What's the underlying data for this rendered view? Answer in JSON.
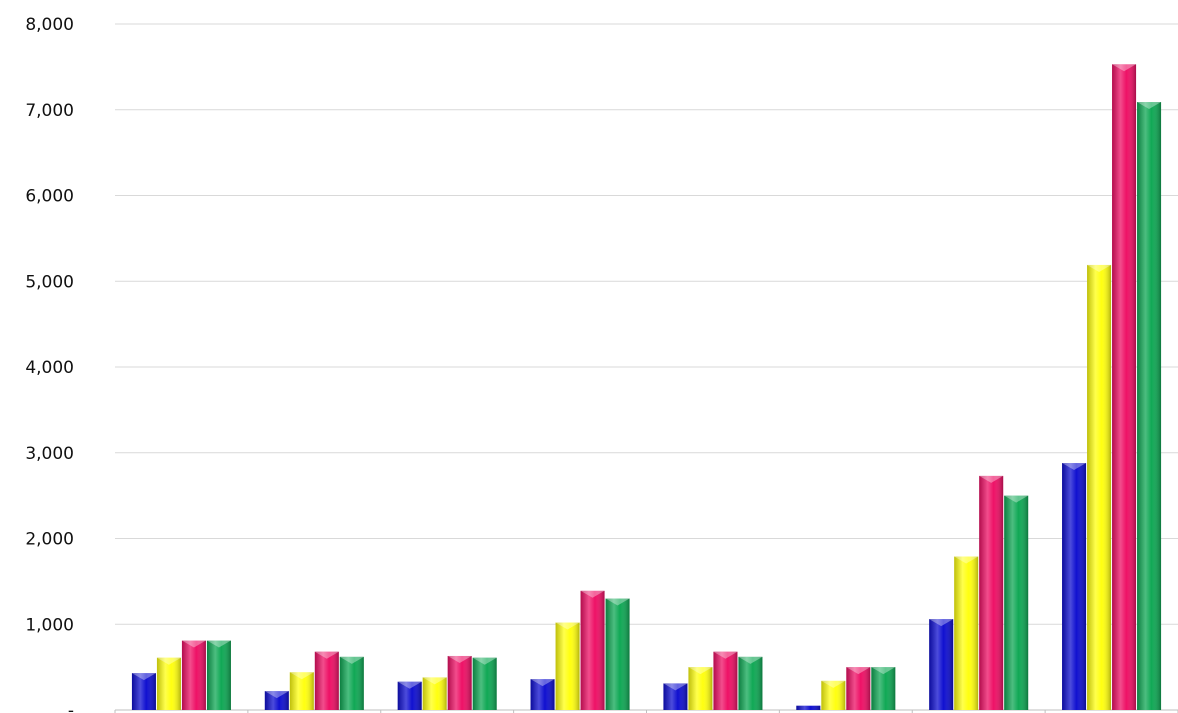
{
  "chart_data": {
    "type": "bar",
    "title": "",
    "xlabel": "",
    "ylabel": "",
    "ylim": [
      0,
      8000
    ],
    "ytick_values": [
      0,
      1000,
      2000,
      3000,
      4000,
      5000,
      6000,
      7000,
      8000
    ],
    "ytick_labels": [
      "-",
      "1,000",
      "2,000",
      "3,000",
      "4,000",
      "5,000",
      "6,000",
      "7,000",
      "8,000"
    ],
    "categories": [
      "",
      "",
      "",
      "",
      "",
      "",
      "",
      ""
    ],
    "grid": true,
    "legend": "none",
    "series": [
      {
        "color": "#1010d0",
        "values": [
          430,
          220,
          330,
          360,
          310,
          50,
          1060,
          2880
        ]
      },
      {
        "color": "#ffff10",
        "values": [
          610,
          440,
          380,
          1020,
          500,
          340,
          1790,
          5190
        ]
      },
      {
        "color": "#ee1166",
        "values": [
          810,
          680,
          630,
          1390,
          680,
          500,
          2730,
          7530
        ]
      },
      {
        "color": "#10a855",
        "values": [
          810,
          620,
          610,
          1300,
          620,
          500,
          2500,
          7090
        ]
      }
    ]
  }
}
